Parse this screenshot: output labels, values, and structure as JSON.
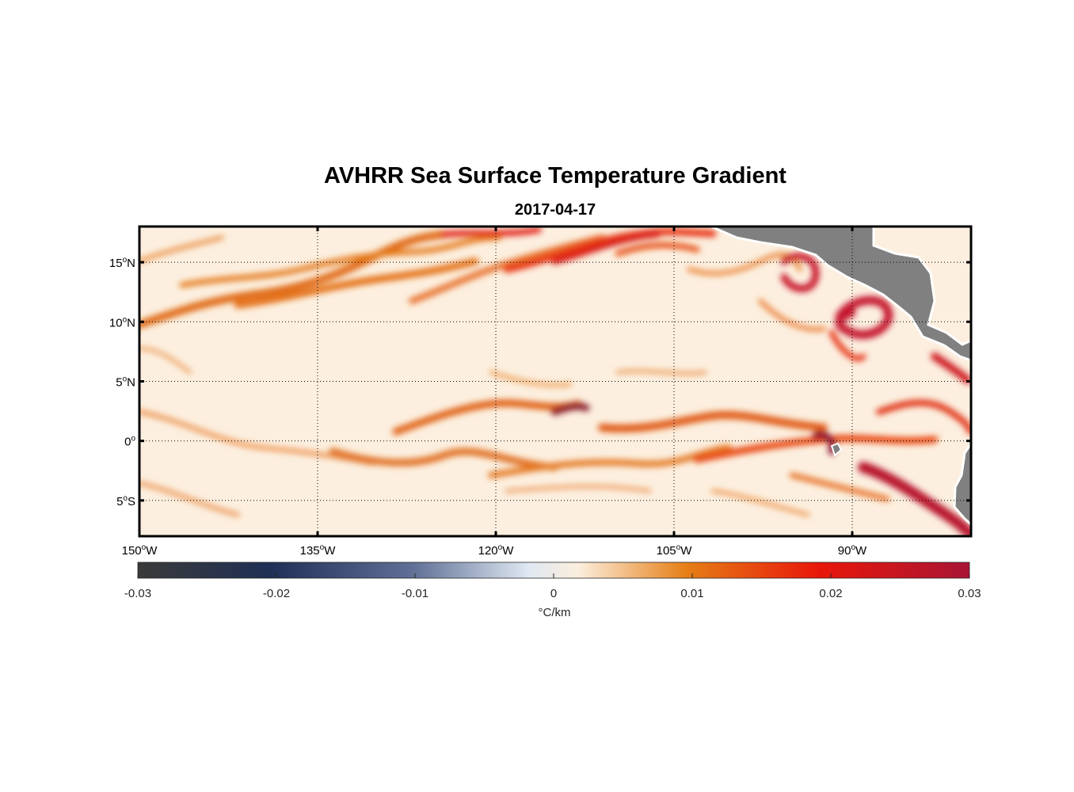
{
  "map": {
    "title": "AVHRR Sea Surface Temperature Gradient",
    "subtitle": "2017-04-17",
    "lat_labels": [
      {
        "lat": 15,
        "num": "15",
        "hemi": "N"
      },
      {
        "lat": 10,
        "num": "10",
        "hemi": "N"
      },
      {
        "lat": 5,
        "num": "5",
        "hemi": "N"
      },
      {
        "lat": 0,
        "num": "0",
        "hemi": ""
      },
      {
        "lat": -5,
        "num": "5",
        "hemi": "S"
      }
    ],
    "lon_labels": [
      {
        "lon": -150,
        "num": "150",
        "hemi": "W"
      },
      {
        "lon": -135,
        "num": "135",
        "hemi": "W"
      },
      {
        "lon": -120,
        "num": "120",
        "hemi": "W"
      },
      {
        "lon": -105,
        "num": "105",
        "hemi": "W"
      },
      {
        "lon": -90,
        "num": "90",
        "hemi": "W"
      }
    ],
    "extent": {
      "lon": [
        -150,
        -80
      ],
      "lat": [
        -8,
        18
      ]
    },
    "land_color": "#808080",
    "colorbar": {
      "range": [
        -0.03,
        0.03
      ],
      "ticks": [
        "-0.03",
        "-0.02",
        "-0.01",
        "0",
        "0.01",
        "0.02",
        "0.03"
      ],
      "label": "°C/km",
      "colors": [
        "#3a3a3a",
        "#1f2f55",
        "#5f6f95",
        "#dfe8f2",
        "#fbeedd",
        "#e67e15",
        "#e8160a",
        "#a81535"
      ]
    }
  }
}
